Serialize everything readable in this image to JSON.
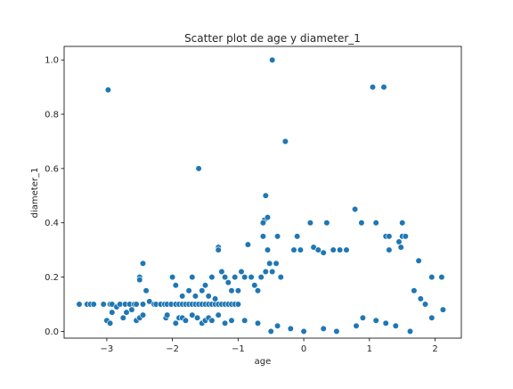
{
  "chart_data": {
    "type": "scatter",
    "title": "Scatter plot de age y diameter_1",
    "xlabel": "age",
    "ylabel": "diameter_1",
    "xlim": [
      -3.65,
      2.4
    ],
    "ylim": [
      -0.025,
      1.05
    ],
    "xticks": [
      -3,
      -2,
      -1,
      0,
      1,
      2
    ],
    "yticks": [
      0.0,
      0.2,
      0.4,
      0.6,
      0.8,
      1.0
    ],
    "xtick_labels": [
      "−3",
      "−2",
      "−1",
      "0",
      "1",
      "2"
    ],
    "ytick_labels": [
      "0.0",
      "0.2",
      "0.4",
      "0.6",
      "0.8",
      "1.0"
    ],
    "grid": false,
    "legend": "none",
    "marker_color": "#1f77b4",
    "marker_edge_color": "#ffffff",
    "points": [
      [
        -3.42,
        0.1
      ],
      [
        -3.3,
        0.1
      ],
      [
        -3.25,
        0.1
      ],
      [
        -3.2,
        0.1
      ],
      [
        -3.05,
        0.1
      ],
      [
        -2.95,
        0.1
      ],
      [
        -2.92,
        0.1
      ],
      [
        -2.85,
        0.09
      ],
      [
        -2.8,
        0.1
      ],
      [
        -2.72,
        0.1
      ],
      [
        -2.65,
        0.1
      ],
      [
        -2.62,
        0.08
      ],
      [
        -2.58,
        0.1
      ],
      [
        -2.55,
        0.1
      ],
      [
        -2.45,
        0.1
      ],
      [
        -2.35,
        0.11
      ],
      [
        -2.28,
        0.1
      ],
      [
        -2.25,
        0.1
      ],
      [
        -2.18,
        0.1
      ],
      [
        -2.12,
        0.1
      ],
      [
        -2.08,
        0.1
      ],
      [
        -2.02,
        0.1
      ],
      [
        -1.95,
        0.1
      ],
      [
        -1.9,
        0.1
      ],
      [
        -1.85,
        0.1
      ],
      [
        -1.8,
        0.1
      ],
      [
        -1.75,
        0.1
      ],
      [
        -1.7,
        0.1
      ],
      [
        -1.65,
        0.1
      ],
      [
        -1.6,
        0.1
      ],
      [
        -1.55,
        0.1
      ],
      [
        -1.5,
        0.1
      ],
      [
        -1.45,
        0.1
      ],
      [
        -1.4,
        0.1
      ],
      [
        -1.35,
        0.1
      ],
      [
        -1.3,
        0.1
      ],
      [
        -1.25,
        0.1
      ],
      [
        -1.2,
        0.1
      ],
      [
        -1.15,
        0.1
      ],
      [
        -1.1,
        0.1
      ],
      [
        -1.05,
        0.1
      ],
      [
        -1.0,
        0.1
      ],
      [
        -3.0,
        0.04
      ],
      [
        -2.95,
        0.03
      ],
      [
        -2.92,
        0.07
      ],
      [
        -2.75,
        0.05
      ],
      [
        -2.7,
        0.07
      ],
      [
        -2.55,
        0.04
      ],
      [
        -2.5,
        0.05
      ],
      [
        -2.45,
        0.06
      ],
      [
        -2.1,
        0.05
      ],
      [
        -2.08,
        0.06
      ],
      [
        -1.95,
        0.03
      ],
      [
        -1.9,
        0.05
      ],
      [
        -1.85,
        0.05
      ],
      [
        -1.8,
        0.04
      ],
      [
        -1.7,
        0.06
      ],
      [
        -1.62,
        0.05
      ],
      [
        -1.55,
        0.03
      ],
      [
        -1.5,
        0.04
      ],
      [
        -1.45,
        0.05
      ],
      [
        -1.4,
        0.04
      ],
      [
        -2.5,
        0.2
      ],
      [
        -2.5,
        0.19
      ],
      [
        -2.45,
        0.25
      ],
      [
        -2.4,
        0.15
      ],
      [
        -2.0,
        0.2
      ],
      [
        -1.95,
        0.17
      ],
      [
        -1.85,
        0.13
      ],
      [
        -1.75,
        0.15
      ],
      [
        -1.7,
        0.2
      ],
      [
        -1.65,
        0.13
      ],
      [
        -1.55,
        0.15
      ],
      [
        -1.5,
        0.17
      ],
      [
        -1.45,
        0.13
      ],
      [
        -1.4,
        0.2
      ],
      [
        -1.35,
        0.12
      ],
      [
        -1.3,
        0.31
      ],
      [
        -1.3,
        0.3
      ],
      [
        -1.25,
        0.22
      ],
      [
        -1.2,
        0.2
      ],
      [
        -1.15,
        0.18
      ],
      [
        -1.1,
        0.15
      ],
      [
        -1.05,
        0.2
      ],
      [
        -1.0,
        0.15
      ],
      [
        -0.95,
        0.22
      ],
      [
        -0.9,
        0.2
      ],
      [
        -0.85,
        0.32
      ],
      [
        -0.8,
        0.2
      ],
      [
        -0.75,
        0.17
      ],
      [
        -0.7,
        0.15
      ],
      [
        -0.65,
        0.2
      ],
      [
        -2.98,
        0.89
      ],
      [
        -1.6,
        0.6
      ],
      [
        -0.48,
        1.0
      ],
      [
        -0.28,
        0.7
      ],
      [
        1.05,
        0.9
      ],
      [
        1.22,
        0.9
      ],
      [
        -0.58,
        0.5
      ],
      [
        -0.6,
        0.41
      ],
      [
        -0.55,
        0.42
      ],
      [
        -0.62,
        0.4
      ],
      [
        -0.4,
        0.35
      ],
      [
        -0.62,
        0.35
      ],
      [
        -0.55,
        0.3
      ],
      [
        -0.48,
        0.22
      ],
      [
        -0.42,
        0.25
      ],
      [
        -0.52,
        0.25
      ],
      [
        -0.58,
        0.22
      ],
      [
        -0.35,
        0.2
      ],
      [
        -0.15,
        0.3
      ],
      [
        -0.1,
        0.35
      ],
      [
        -0.05,
        0.3
      ],
      [
        0.1,
        0.4
      ],
      [
        0.15,
        0.31
      ],
      [
        0.22,
        0.3
      ],
      [
        0.3,
        0.29
      ],
      [
        0.35,
        0.4
      ],
      [
        0.45,
        0.3
      ],
      [
        0.55,
        0.3
      ],
      [
        0.65,
        0.3
      ],
      [
        0.78,
        0.45
      ],
      [
        0.88,
        0.4
      ],
      [
        1.1,
        0.4
      ],
      [
        1.25,
        0.35
      ],
      [
        1.3,
        0.35
      ],
      [
        1.45,
        0.33
      ],
      [
        1.48,
        0.31
      ],
      [
        1.5,
        0.35
      ],
      [
        1.55,
        0.35
      ],
      [
        1.5,
        0.4
      ],
      [
        1.3,
        0.3
      ],
      [
        1.75,
        0.26
      ],
      [
        1.95,
        0.2
      ],
      [
        2.1,
        0.2
      ],
      [
        2.12,
        0.08
      ],
      [
        1.95,
        0.05
      ],
      [
        1.85,
        0.1
      ],
      [
        1.78,
        0.12
      ],
      [
        1.68,
        0.15
      ],
      [
        1.62,
        0.0
      ],
      [
        1.4,
        0.02
      ],
      [
        1.25,
        0.03
      ],
      [
        1.1,
        0.04
      ],
      [
        0.9,
        0.05
      ],
      [
        0.8,
        0.02
      ],
      [
        0.5,
        0.0
      ],
      [
        0.3,
        0.01
      ],
      [
        0.0,
        0.0
      ],
      [
        -0.2,
        0.01
      ],
      [
        -0.4,
        0.02
      ],
      [
        -0.5,
        0.0
      ],
      [
        -0.7,
        0.03
      ],
      [
        -0.9,
        0.04
      ],
      [
        -1.1,
        0.04
      ],
      [
        -1.3,
        0.06
      ],
      [
        -1.2,
        0.03
      ]
    ]
  }
}
